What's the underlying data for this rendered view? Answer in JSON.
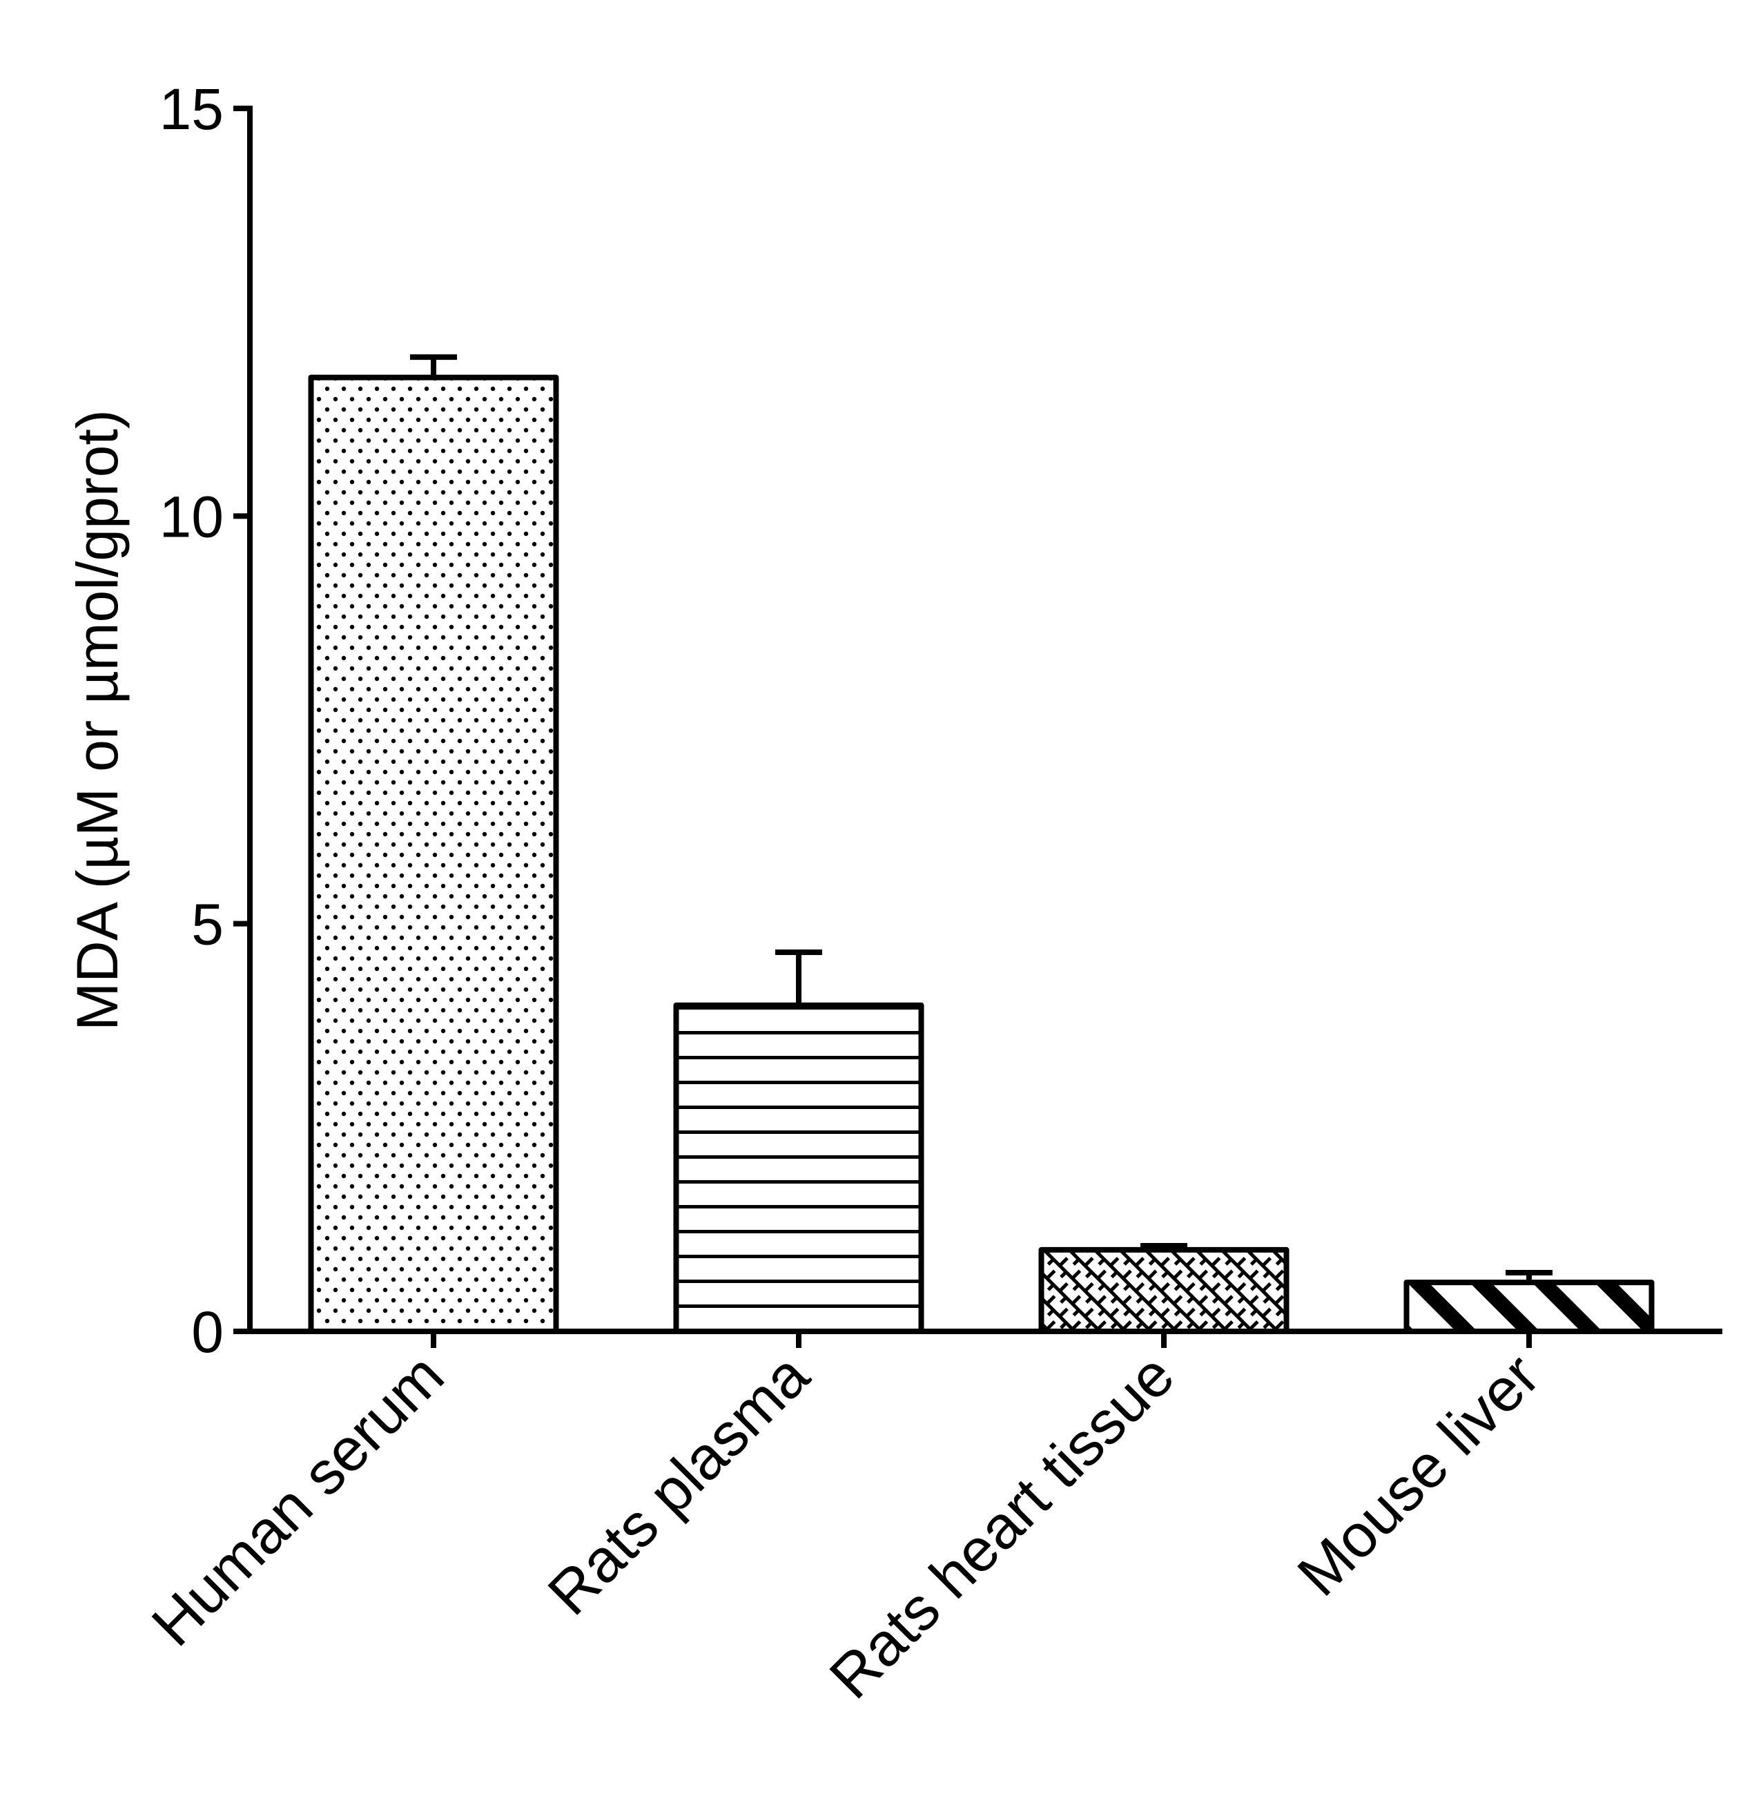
{
  "chart_data": {
    "type": "bar",
    "title": "",
    "xlabel": "",
    "ylabel": "MDA (µM or µmol/gprot)",
    "ylim": [
      0,
      15
    ],
    "yticks": [
      0,
      5,
      10,
      15
    ],
    "grid": false,
    "legend": "none",
    "categories": [
      "Human serum",
      "Rats plasma",
      "Rats heart tissue",
      "Mouse liver"
    ],
    "series": [
      {
        "values": [
          11.7,
          4.0,
          1.0,
          0.6
        ],
        "errors": [
          0.25,
          0.65,
          0.05,
          0.12
        ],
        "patterns": [
          "dots",
          "horizontal-lines",
          "crosshatch",
          "diagonal-stripes"
        ]
      }
    ],
    "colors": {
      "stroke": "#000000",
      "fill": "#ffffff"
    }
  }
}
